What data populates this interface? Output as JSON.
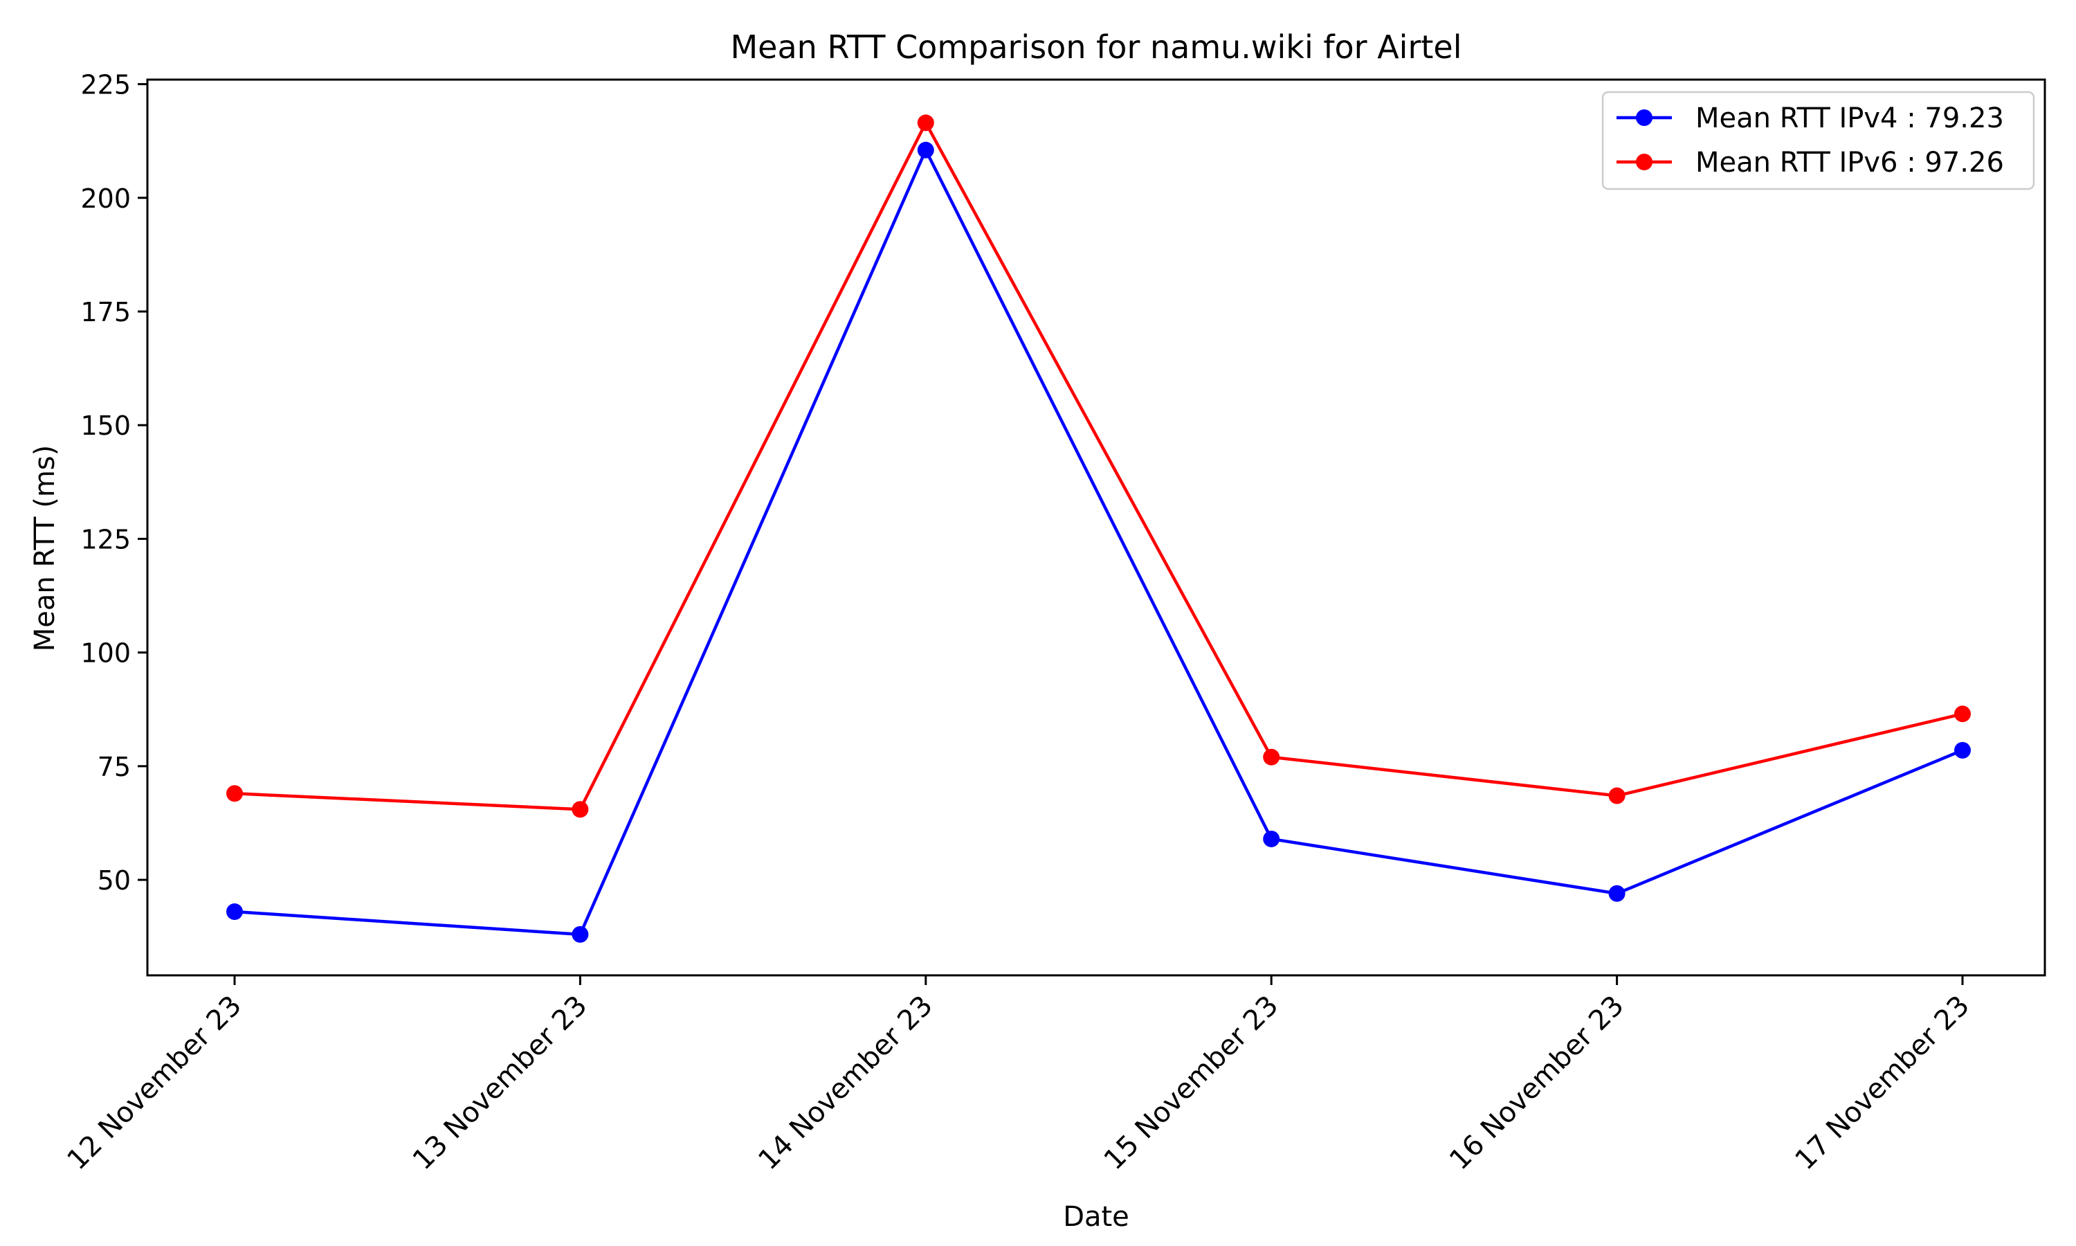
{
  "chart_data": {
    "type": "line",
    "title": "Mean RTT Comparison for namu.wiki for Airtel",
    "xlabel": "Date",
    "ylabel": "Mean RTT (ms)",
    "categories": [
      "12 November 23",
      "13 November 23",
      "14 November 23",
      "15 November 23",
      "16 November 23",
      "17 November 23"
    ],
    "ylim": [
      29,
      226
    ],
    "yticks": [
      50,
      75,
      100,
      125,
      150,
      175,
      200,
      225
    ],
    "grid": false,
    "legend_position": "top-right",
    "series": [
      {
        "name": "Mean RTT IPv4 : 79.23",
        "color": "#0000ff",
        "marker": "circle",
        "values": [
          43,
          38,
          210.5,
          59,
          47,
          78.5
        ]
      },
      {
        "name": "Mean RTT IPv6 : 97.26",
        "color": "#ff0000",
        "marker": "circle",
        "values": [
          69,
          65.5,
          216.5,
          77,
          68.5,
          86.5
        ]
      }
    ]
  }
}
